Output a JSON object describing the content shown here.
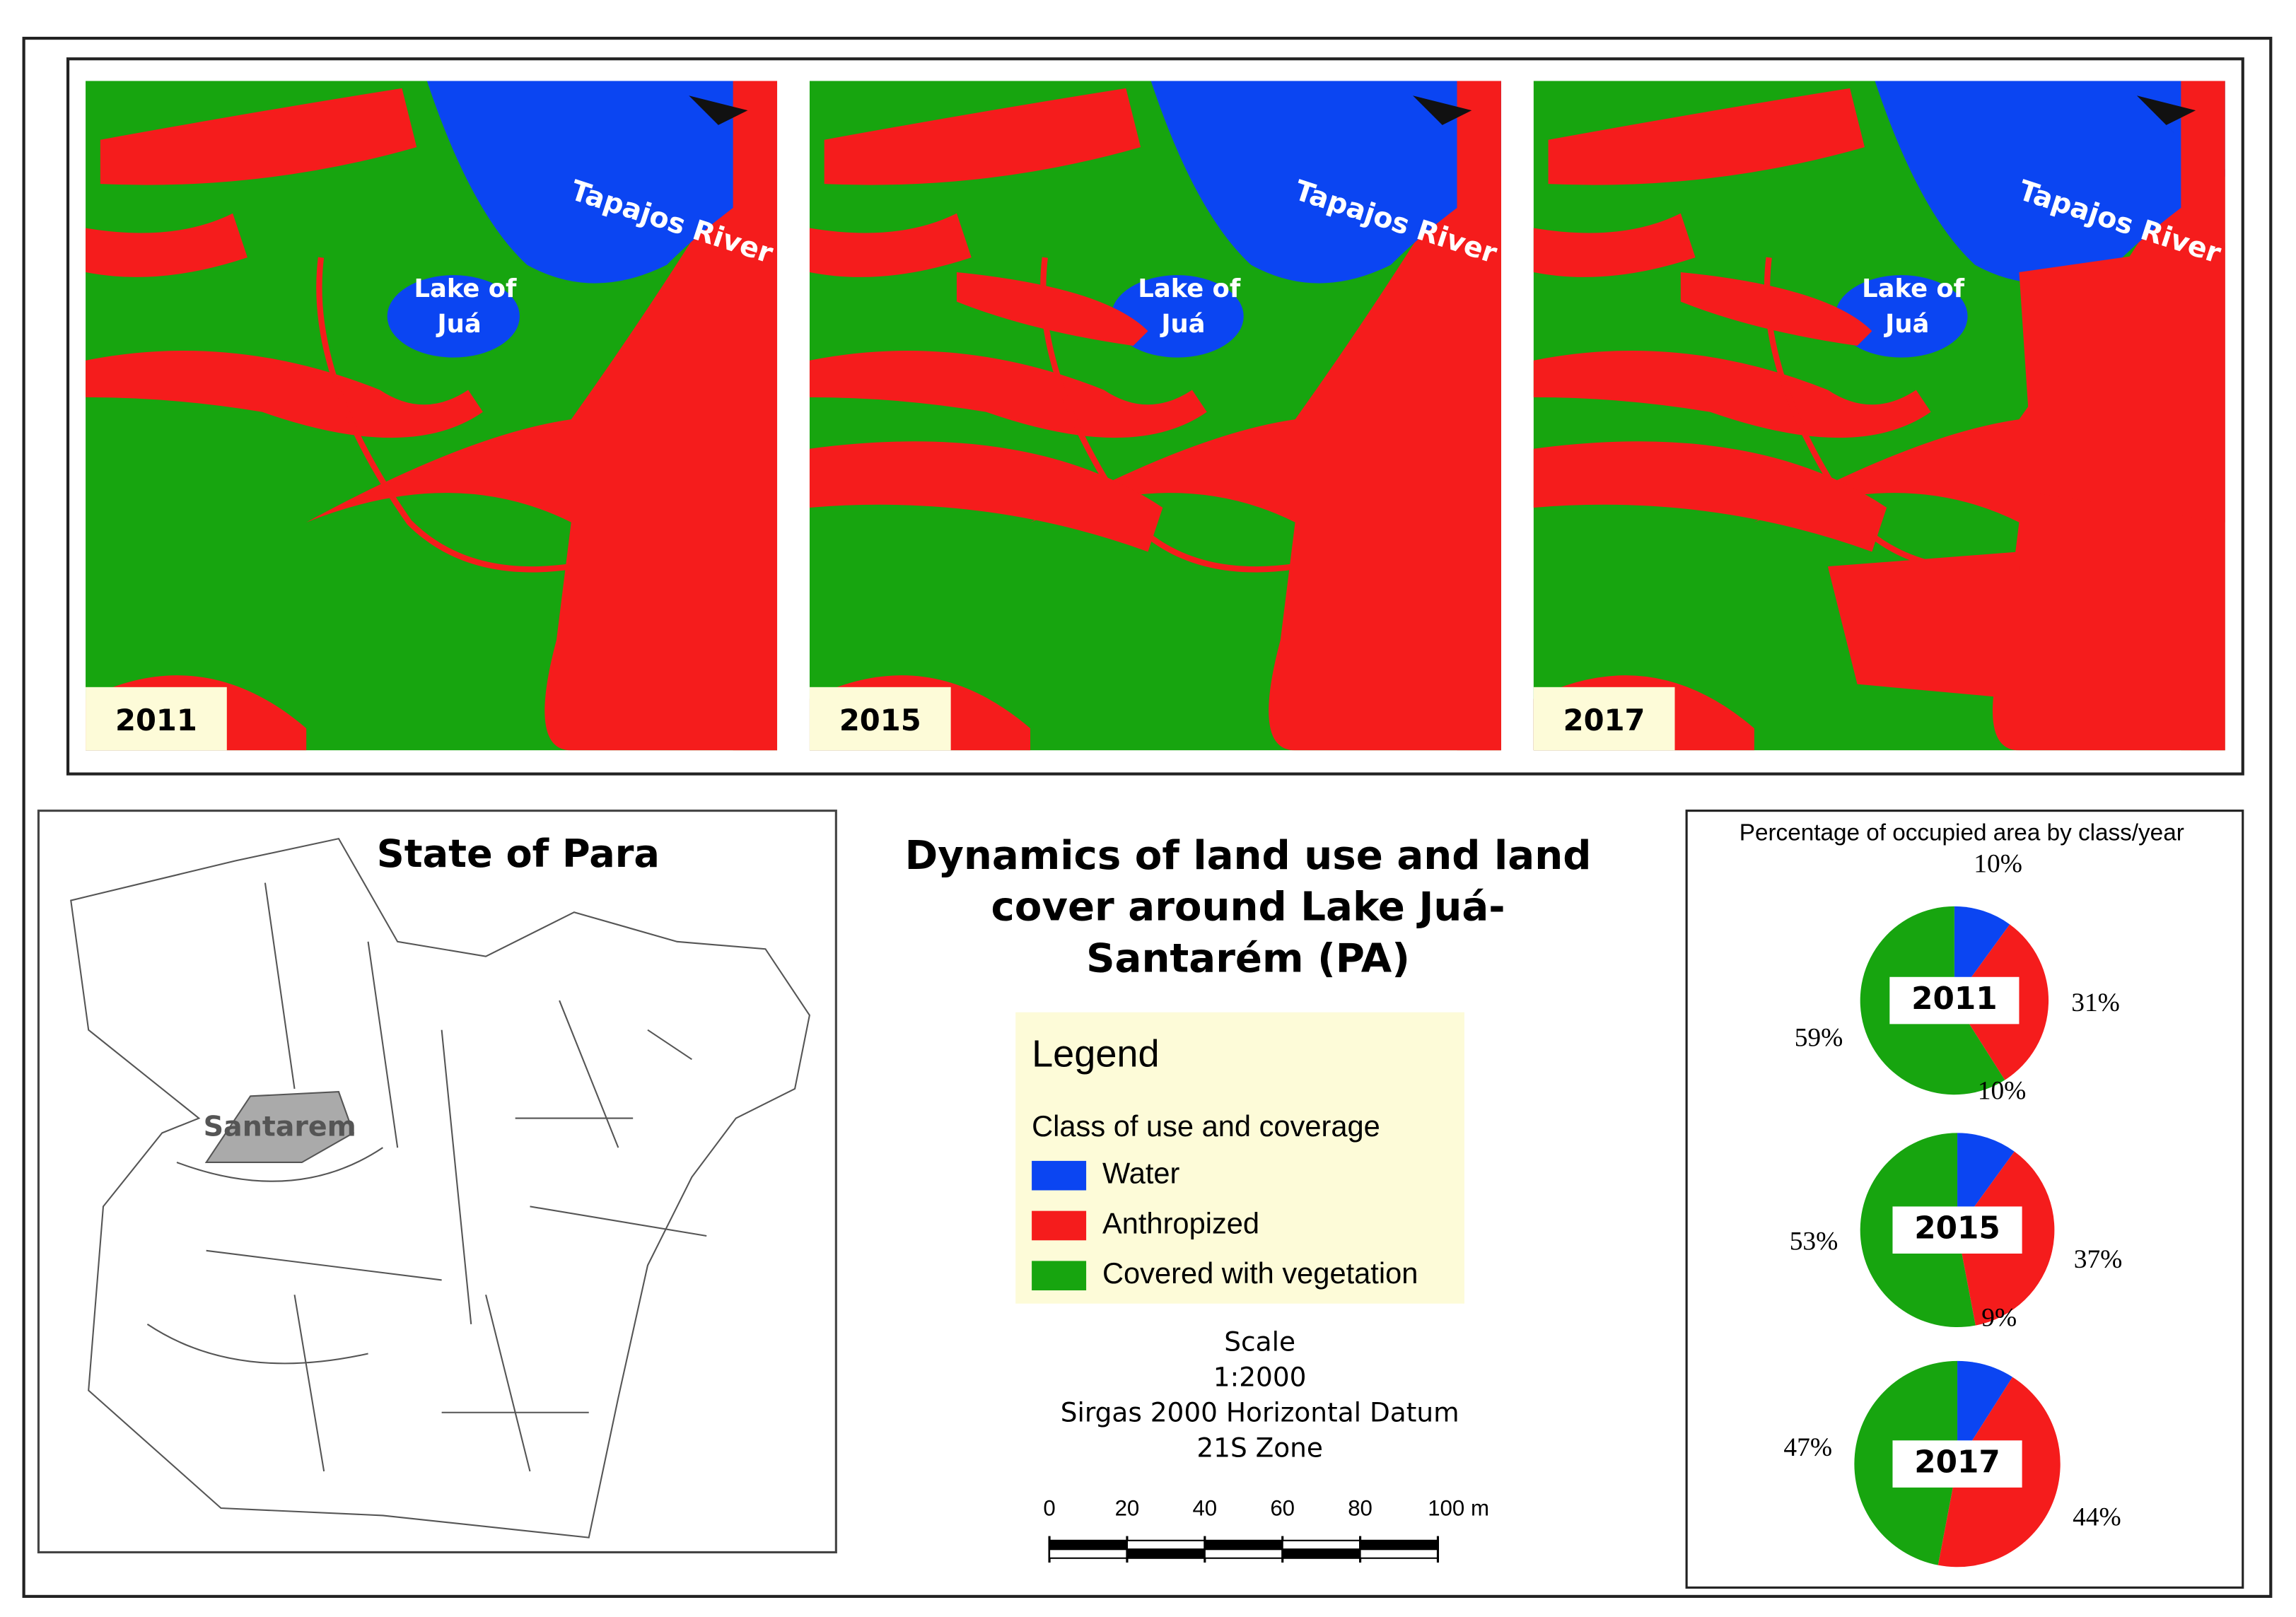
{
  "panels": [
    {
      "year": "2011",
      "river": "Tapajos River",
      "lake": [
        "Lake of",
        "Juá"
      ]
    },
    {
      "year": "2015",
      "river": "Tapajos River",
      "lake": [
        "Lake of",
        "Juá"
      ]
    },
    {
      "year": "2017",
      "river": "Tapajos River",
      "lake": [
        "Lake of",
        "Juá"
      ]
    }
  ],
  "state_map": {
    "title": "State of Para",
    "highlight": "Santarem"
  },
  "title": [
    "Dynamics of land use and land",
    "cover around Lake Juá-",
    "Santarém (PA)"
  ],
  "legend": {
    "title": "Legend",
    "subtitle": "Class of use and coverage",
    "items": [
      {
        "name": "Water",
        "color": "#0b45f2"
      },
      {
        "name": "Anthropized",
        "color": "#f51c1c"
      },
      {
        "name": "Covered with vegetation",
        "color": "#17a50f"
      }
    ]
  },
  "scale": {
    "lines": [
      "Scale",
      "1:2000",
      "Sirgas 2000 Horizontal Datum",
      "21S Zone"
    ],
    "ticks": [
      0,
      20,
      40,
      60,
      80,
      {
        "value": 100,
        "label": "100 m"
      }
    ]
  },
  "pie_panel_title": "Percentage of occupied area by class/year",
  "chart_data": [
    {
      "type": "pie",
      "title": "2011",
      "values": [
        10,
        31,
        59
      ],
      "value_labels": [
        "10%",
        "31%",
        "59%"
      ]
    },
    {
      "type": "pie",
      "title": "2015",
      "values": [
        10,
        37,
        53
      ],
      "value_labels": [
        "10%",
        "37%",
        "53%"
      ]
    },
    {
      "type": "pie",
      "title": "2017",
      "values": [
        9,
        44,
        47
      ],
      "value_labels": [
        "9%",
        "44%",
        "47%"
      ]
    }
  ]
}
